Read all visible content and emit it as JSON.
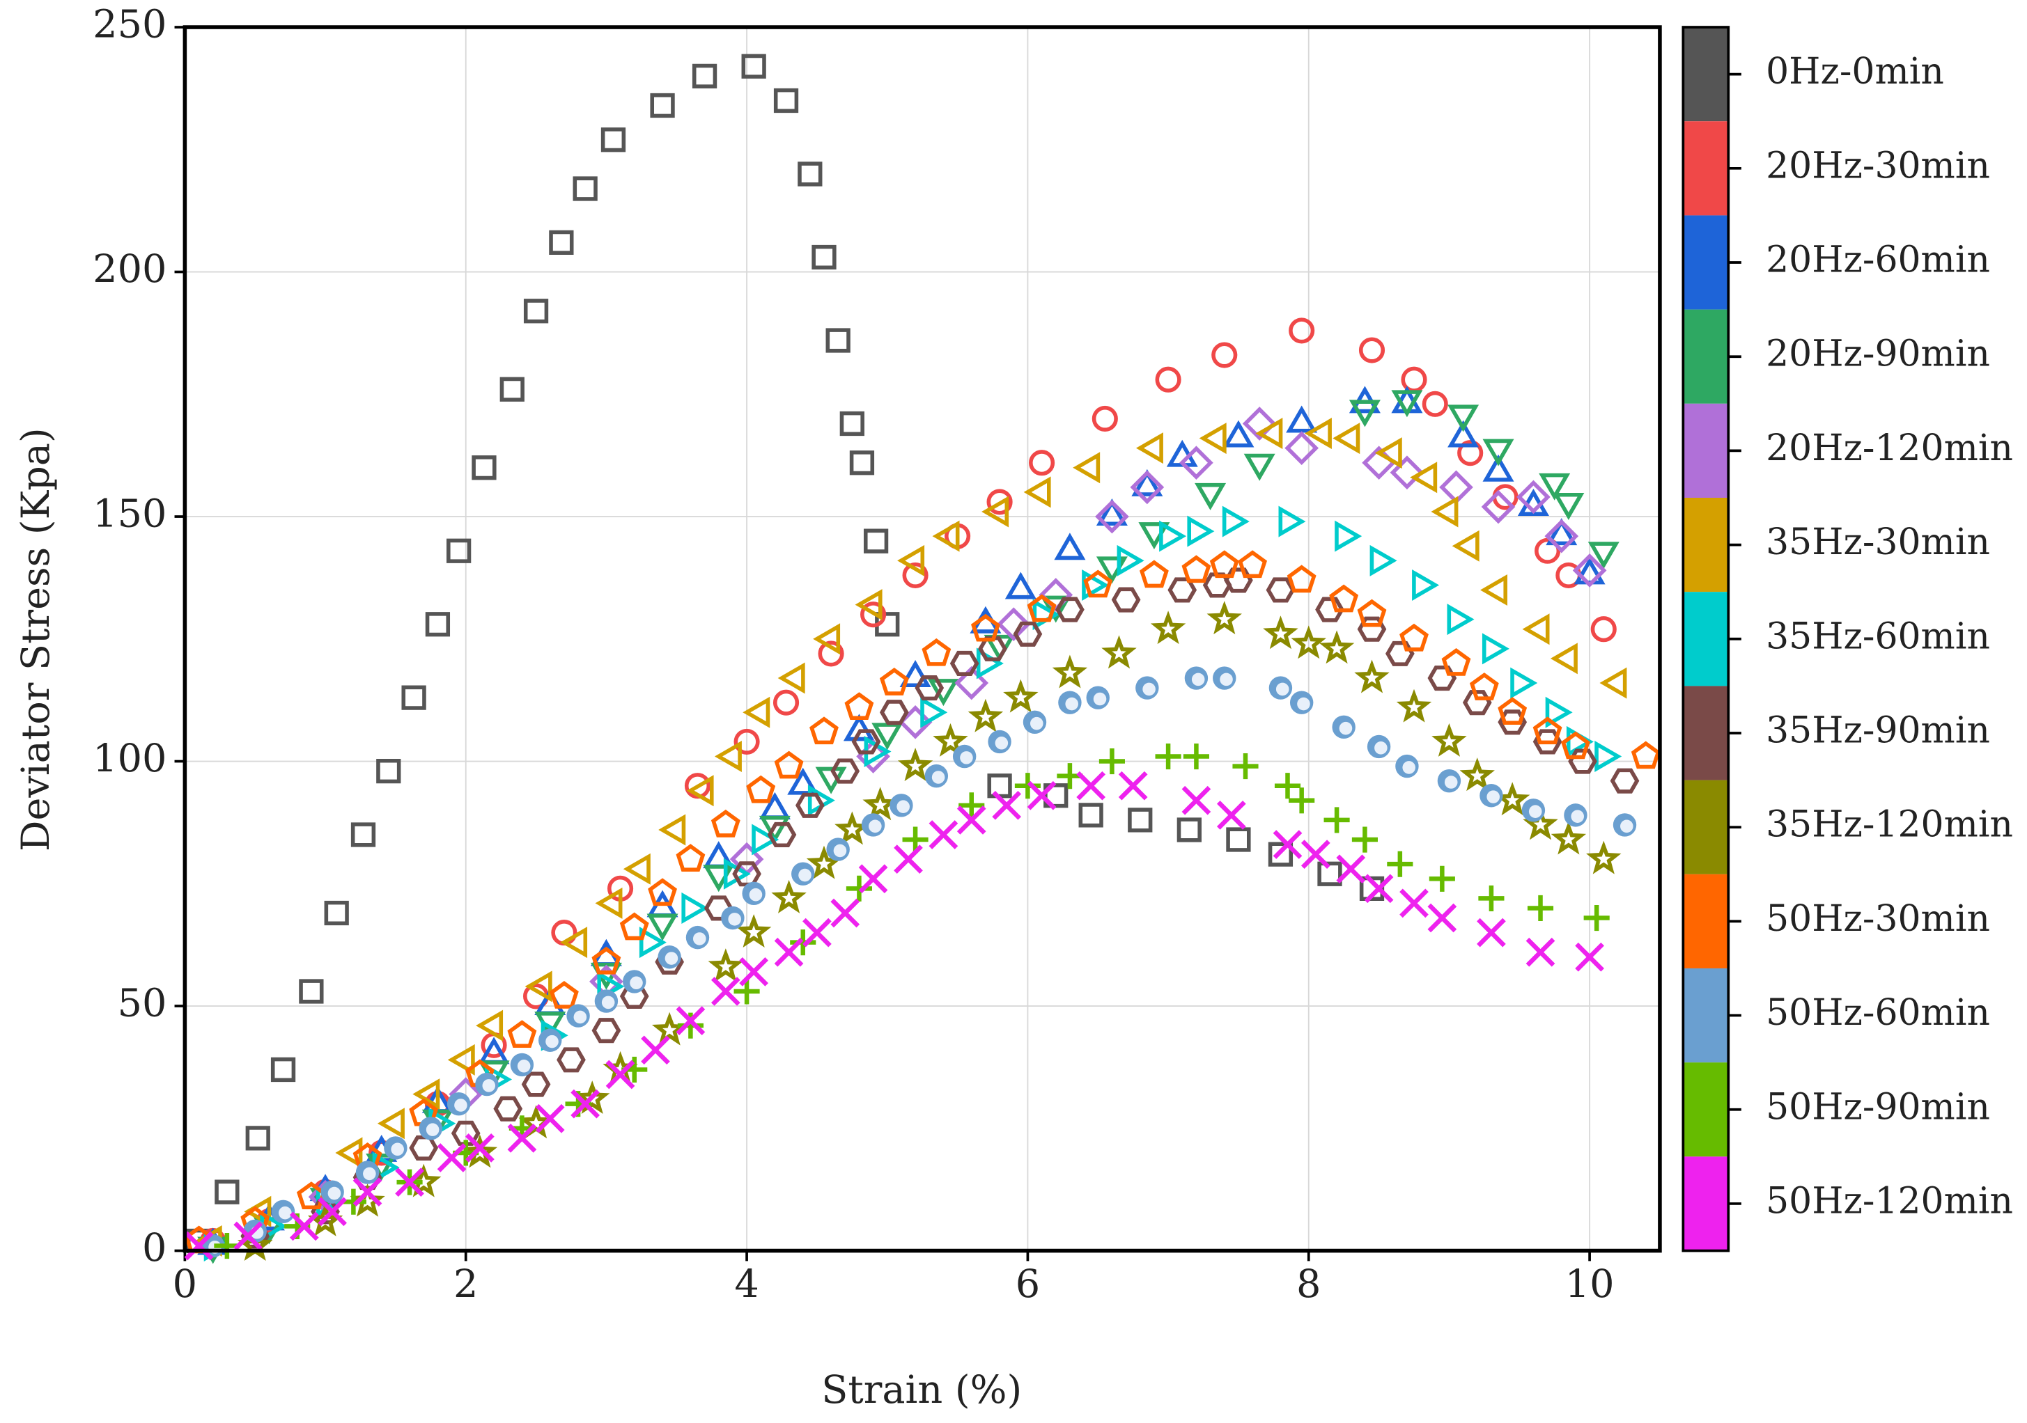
{
  "chart_data": {
    "type": "scatter",
    "xlabel": "Strain (%)",
    "ylabel": "Deviator Stress (Kpa)",
    "xlim": [
      0,
      10.5
    ],
    "ylim": [
      0,
      250
    ],
    "xticks": [
      0,
      2,
      4,
      6,
      8,
      10
    ],
    "yticks": [
      0,
      50,
      100,
      150,
      200,
      250
    ],
    "grid": true,
    "legend": "right",
    "series": [
      {
        "name": "0Hz-0min",
        "color": "#555555",
        "marker": "square",
        "x": [
          0.1,
          0.3,
          0.52,
          0.7,
          0.9,
          1.08,
          1.27,
          1.45,
          1.63,
          1.8,
          1.95,
          2.13,
          2.33,
          2.5,
          2.68,
          2.85,
          3.05,
          3.4,
          3.7,
          4.05,
          4.28,
          4.45,
          4.55,
          4.65,
          4.75,
          4.82,
          4.92,
          5.0,
          5.8,
          6.2,
          6.45,
          6.8,
          7.15,
          7.5,
          7.8,
          8.15,
          8.45
        ],
        "values": [
          2,
          12,
          23,
          37,
          53,
          69,
          85,
          98,
          113,
          128,
          143,
          160,
          176,
          192,
          206,
          217,
          227,
          234,
          240,
          242,
          235,
          220,
          203,
          186,
          169,
          161,
          145,
          128,
          95,
          93,
          89,
          88,
          86,
          84,
          81,
          77,
          74
        ]
      },
      {
        "name": "20Hz-30min",
        "color": "#f04848",
        "marker": "circle",
        "x": [
          0.2,
          0.6,
          1.0,
          1.4,
          1.8,
          2.2,
          2.5,
          2.7,
          3.1,
          3.65,
          4.0,
          4.28,
          4.6,
          4.9,
          5.2,
          5.5,
          5.8,
          6.1,
          6.55,
          7.0,
          7.4,
          7.95,
          8.45,
          8.75,
          8.9,
          9.15,
          9.4,
          9.7,
          9.85,
          10.1
        ],
        "values": [
          2,
          6,
          12,
          20,
          30,
          42,
          52,
          65,
          74,
          95,
          104,
          112,
          122,
          130,
          138,
          146,
          153,
          161,
          170,
          178,
          183,
          188,
          184,
          178,
          173,
          163,
          154,
          143,
          138,
          127
        ]
      },
      {
        "name": "20Hz-60min",
        "color": "#1e64d8",
        "marker": "tri-up",
        "x": [
          0.2,
          0.6,
          1.0,
          1.4,
          1.8,
          2.2,
          2.6,
          3.0,
          3.4,
          3.8,
          4.2,
          4.4,
          4.8,
          5.2,
          5.7,
          5.95,
          6.3,
          6.6,
          6.85,
          7.1,
          7.5,
          7.95,
          8.4,
          8.7,
          9.1,
          9.35,
          9.6,
          9.8,
          10.0
        ],
        "values": [
          1,
          6,
          12,
          20,
          30,
          40,
          50,
          60,
          70,
          80,
          90,
          95,
          106,
          117,
          128,
          135,
          143,
          150,
          156,
          162,
          166,
          169,
          173,
          173,
          166,
          159,
          152,
          146,
          138
        ]
      },
      {
        "name": "20Hz-90min",
        "color": "#2ea862",
        "marker": "tri-down",
        "x": [
          0.2,
          0.6,
          1.0,
          1.4,
          1.8,
          2.2,
          2.6,
          3.0,
          3.4,
          3.8,
          4.2,
          4.6,
          5.0,
          5.4,
          5.8,
          6.2,
          6.6,
          6.9,
          7.3,
          7.65,
          8.4,
          8.7,
          9.1,
          9.35,
          9.75,
          9.85,
          10.1
        ],
        "values": [
          1,
          5,
          11,
          18,
          27,
          37,
          47,
          57,
          67,
          77,
          87,
          97,
          106,
          115,
          124,
          132,
          140,
          147,
          155,
          161,
          172,
          174,
          171,
          164,
          157,
          153,
          143
        ]
      },
      {
        "name": "20Hz-120min",
        "color": "#b070d8",
        "marker": "diamond",
        "x": [
          1.0,
          2.0,
          3.0,
          4.0,
          4.9,
          5.2,
          5.6,
          5.9,
          6.2,
          6.6,
          6.85,
          7.2,
          7.65,
          7.95,
          8.5,
          8.7,
          9.05,
          9.35,
          9.6,
          9.8,
          10.0
        ],
        "values": [
          11,
          32,
          55,
          80,
          101,
          108,
          116,
          128,
          134,
          150,
          156,
          161,
          169,
          164,
          161,
          159,
          156,
          152,
          154,
          146,
          139
        ]
      },
      {
        "name": "35Hz-30min",
        "color": "#d4a000",
        "marker": "tri-left",
        "x": [
          0.2,
          0.55,
          1.2,
          1.5,
          1.75,
          2.0,
          2.2,
          2.55,
          2.8,
          3.05,
          3.25,
          3.5,
          3.7,
          3.9,
          4.1,
          4.35,
          4.6,
          4.9,
          5.2,
          5.45,
          5.8,
          6.1,
          6.45,
          6.9,
          7.35,
          7.75,
          8.1,
          8.3,
          8.6,
          8.85,
          9.0,
          9.15,
          9.35,
          9.65,
          9.85,
          10.2
        ],
        "values": [
          2,
          8,
          20,
          26,
          32,
          39,
          46,
          54,
          63,
          71,
          78,
          86,
          94,
          101,
          110,
          117,
          125,
          132,
          141,
          146,
          151,
          155,
          160,
          164,
          166,
          167,
          167,
          166,
          163,
          158,
          151,
          144,
          135,
          127,
          121,
          116
        ]
      },
      {
        "name": "35Hz-60min",
        "color": "#00cccc",
        "marker": "tri-right",
        "x": [
          0.2,
          0.6,
          1.0,
          1.4,
          1.8,
          2.2,
          2.6,
          3.0,
          3.3,
          3.6,
          3.9,
          4.1,
          4.5,
          4.9,
          5.3,
          5.7,
          6.1,
          6.45,
          6.7,
          7.0,
          7.2,
          7.45,
          7.85,
          8.25,
          8.5,
          8.8,
          9.05,
          9.3,
          9.5,
          9.75,
          9.9,
          10.1
        ],
        "values": [
          1,
          5,
          10,
          17,
          26,
          35,
          44,
          54,
          63,
          70,
          77,
          84,
          92,
          102,
          110,
          120,
          130,
          136,
          141,
          146,
          147,
          149,
          149,
          146,
          141,
          136,
          129,
          123,
          116,
          110,
          104,
          101
        ]
      },
      {
        "name": "35Hz-90min",
        "color": "#7a4a48",
        "marker": "hexagon",
        "x": [
          0.5,
          1.0,
          1.3,
          1.7,
          2.0,
          2.3,
          2.5,
          2.75,
          3.0,
          3.2,
          3.45,
          3.8,
          4.0,
          4.25,
          4.45,
          4.7,
          4.85,
          5.05,
          5.3,
          5.55,
          5.75,
          6.0,
          6.3,
          6.7,
          7.1,
          7.35,
          7.5,
          7.8,
          8.15,
          8.45,
          8.65,
          8.95,
          9.2,
          9.45,
          9.7,
          9.95,
          10.25
        ],
        "values": [
          3,
          8,
          15,
          21,
          24,
          29,
          34,
          39,
          45,
          52,
          59,
          70,
          77,
          85,
          91,
          98,
          104,
          110,
          115,
          120,
          123,
          126,
          131,
          133,
          135,
          136,
          137,
          135,
          131,
          127,
          122,
          117,
          112,
          108,
          104,
          100,
          96
        ]
      },
      {
        "name": "35Hz-120min",
        "color": "#8a8a00",
        "marker": "star",
        "x": [
          0.5,
          1.0,
          1.3,
          1.7,
          2.1,
          2.5,
          2.9,
          3.1,
          3.45,
          3.85,
          4.05,
          4.3,
          4.55,
          4.75,
          4.95,
          5.2,
          5.45,
          5.7,
          5.95,
          6.3,
          6.65,
          7.0,
          7.4,
          7.8,
          8.0,
          8.2,
          8.45,
          8.75,
          9.0,
          9.2,
          9.45,
          9.65,
          9.85,
          10.1
        ],
        "values": [
          1,
          6,
          10,
          14,
          20,
          26,
          31,
          37,
          45,
          58,
          65,
          72,
          79,
          86,
          91,
          99,
          104,
          109,
          113,
          118,
          122,
          127,
          129,
          126,
          124,
          123,
          117,
          111,
          104,
          97,
          92,
          87,
          84,
          80
        ]
      },
      {
        "name": "50Hz-30min",
        "color": "#ff6600",
        "marker": "pentagon",
        "x": [
          0.1,
          0.5,
          0.9,
          1.3,
          1.7,
          2.1,
          2.4,
          2.7,
          3.0,
          3.2,
          3.4,
          3.6,
          3.85,
          4.1,
          4.3,
          4.55,
          4.8,
          5.05,
          5.35,
          5.7,
          6.1,
          6.5,
          6.9,
          7.2,
          7.4,
          7.6,
          7.95,
          8.25,
          8.45,
          8.75,
          9.05,
          9.25,
          9.45,
          9.7,
          9.9,
          10.4
        ],
        "values": [
          2,
          6,
          11,
          19,
          28,
          36,
          44,
          52,
          59,
          66,
          73,
          80,
          87,
          94,
          99,
          106,
          111,
          116,
          122,
          127,
          131,
          136,
          138,
          139,
          140,
          140,
          137,
          133,
          130,
          125,
          120,
          115,
          110,
          106,
          103,
          101
        ]
      },
      {
        "name": "50Hz-60min",
        "color": "#6a9fd0",
        "marker": "sphere",
        "x": [
          0.2,
          0.5,
          0.7,
          1.05,
          1.3,
          1.5,
          1.75,
          1.95,
          2.15,
          2.4,
          2.6,
          2.8,
          3.0,
          3.2,
          3.45,
          3.65,
          3.9,
          4.05,
          4.4,
          4.65,
          4.9,
          5.1,
          5.35,
          5.55,
          5.8,
          6.05,
          6.3,
          6.5,
          6.85,
          7.2,
          7.4,
          7.8,
          7.95,
          8.25,
          8.5,
          8.7,
          9.0,
          9.3,
          9.6,
          9.9,
          10.25
        ],
        "values": [
          1,
          4,
          8,
          12,
          16,
          21,
          25,
          30,
          34,
          38,
          43,
          48,
          51,
          55,
          60,
          64,
          68,
          73,
          77,
          82,
          87,
          91,
          97,
          101,
          104,
          108,
          112,
          113,
          115,
          117,
          117,
          115,
          112,
          107,
          103,
          99,
          96,
          93,
          90,
          89,
          87
        ]
      },
      {
        "name": "50Hz-90min",
        "color": "#66bb00",
        "marker": "plus",
        "x": [
          0.3,
          0.8,
          1.2,
          1.6,
          2.0,
          2.4,
          2.8,
          3.2,
          3.6,
          4.0,
          4.4,
          4.8,
          5.2,
          5.6,
          6.0,
          6.3,
          6.6,
          7.0,
          7.2,
          7.55,
          7.85,
          7.95,
          8.2,
          8.4,
          8.65,
          8.95,
          9.3,
          9.65,
          10.05
        ],
        "values": [
          1,
          5,
          10,
          14,
          20,
          25,
          30,
          37,
          46,
          53,
          63,
          74,
          84,
          91,
          95,
          97,
          100,
          101,
          101,
          99,
          95,
          92,
          88,
          84,
          79,
          76,
          72,
          70,
          68
        ]
      },
      {
        "name": "50Hz-120min",
        "color": "#ee22ee",
        "marker": "cross",
        "x": [
          0.1,
          0.45,
          0.85,
          1.05,
          1.3,
          1.6,
          1.9,
          2.1,
          2.4,
          2.6,
          2.85,
          3.1,
          3.35,
          3.6,
          3.85,
          4.05,
          4.3,
          4.5,
          4.7,
          4.9,
          5.15,
          5.4,
          5.6,
          5.85,
          6.1,
          6.45,
          6.75,
          7.2,
          7.45,
          7.85,
          8.05,
          8.3,
          8.5,
          8.75,
          8.95,
          9.3,
          9.65,
          10.0
        ],
        "values": [
          1,
          3,
          5,
          8,
          12,
          14,
          19,
          21,
          23,
          27,
          30,
          36,
          41,
          47,
          53,
          57,
          61,
          65,
          69,
          76,
          80,
          85,
          88,
          91,
          93,
          95,
          95,
          92,
          89,
          83,
          81,
          78,
          74,
          71,
          68,
          65,
          61,
          60
        ]
      }
    ]
  }
}
